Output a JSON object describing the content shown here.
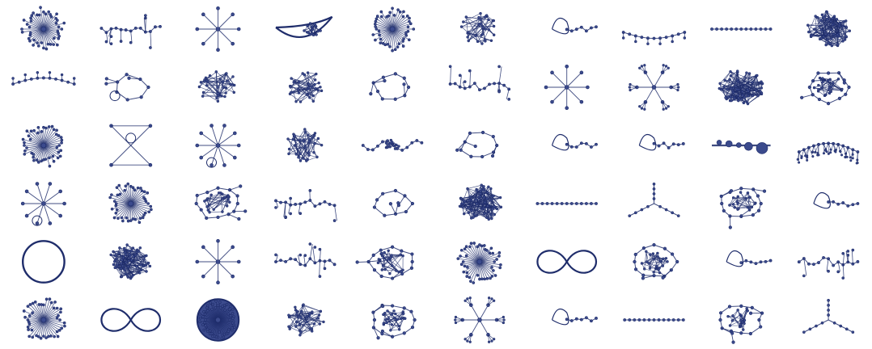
{
  "figure": {
    "grid": {
      "rows": 6,
      "cols": 10
    },
    "colors": {
      "stroke": "#1f2d6b",
      "node": "#1f2d6b",
      "node_fill": "#3b4a8c",
      "background": "#ffffff"
    },
    "panels": [
      {
        "kind": "radial-dense"
      },
      {
        "kind": "chain-bumpy"
      },
      {
        "kind": "star"
      },
      {
        "kind": "teardrop-mesh"
      },
      {
        "kind": "radial-dense"
      },
      {
        "kind": "cluster-graph"
      },
      {
        "kind": "loop-chain"
      },
      {
        "kind": "arc-chain"
      },
      {
        "kind": "straight-line"
      },
      {
        "kind": "hairball"
      },
      {
        "kind": "arc-chain-down"
      },
      {
        "kind": "polygon-graph"
      },
      {
        "kind": "cluster-graph"
      },
      {
        "kind": "hub-graph"
      },
      {
        "kind": "loop-graph"
      },
      {
        "kind": "chain-branching"
      },
      {
        "kind": "star"
      },
      {
        "kind": "star-branching"
      },
      {
        "kind": "hairball"
      },
      {
        "kind": "butterfly-mesh"
      },
      {
        "kind": "radial-dense"
      },
      {
        "kind": "x-graph"
      },
      {
        "kind": "star-loop"
      },
      {
        "kind": "hub-graph"
      },
      {
        "kind": "knot-chain"
      },
      {
        "kind": "loop-graph"
      },
      {
        "kind": "loop-chain"
      },
      {
        "kind": "loop-chain"
      },
      {
        "kind": "beads"
      },
      {
        "kind": "arc-fuzzy"
      },
      {
        "kind": "star-loop"
      },
      {
        "kind": "radial-dense"
      },
      {
        "kind": "mesh-loop"
      },
      {
        "kind": "chain-branching"
      },
      {
        "kind": "loop-graph"
      },
      {
        "kind": "hairball-left"
      },
      {
        "kind": "straight-line"
      },
      {
        "kind": "y-graph"
      },
      {
        "kind": "mesh-loop"
      },
      {
        "kind": "loop-chain"
      },
      {
        "kind": "ring"
      },
      {
        "kind": "hairball"
      },
      {
        "kind": "star"
      },
      {
        "kind": "chain-branching"
      },
      {
        "kind": "figure-eight-mesh"
      },
      {
        "kind": "radial-dense"
      },
      {
        "kind": "figure-eight"
      },
      {
        "kind": "mesh-loop"
      },
      {
        "kind": "loop-chain"
      },
      {
        "kind": "chain-branching"
      },
      {
        "kind": "radial-dense"
      },
      {
        "kind": "figure-eight"
      },
      {
        "kind": "ring-dense"
      },
      {
        "kind": "cluster-graph"
      },
      {
        "kind": "butterfly-mesh"
      },
      {
        "kind": "star-branching"
      },
      {
        "kind": "loop-chain"
      },
      {
        "kind": "straight-line"
      },
      {
        "kind": "mesh-loop"
      },
      {
        "kind": "y-graph"
      }
    ]
  }
}
